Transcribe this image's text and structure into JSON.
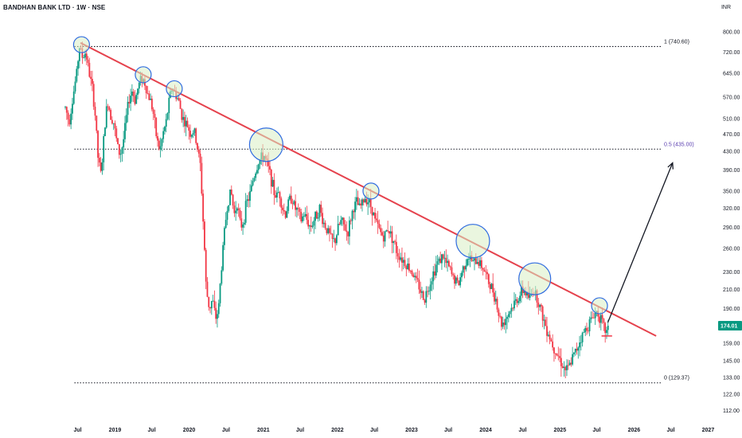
{
  "header": {
    "title": "BANDHAN BANK LTD · 1W · NSE",
    "currency": "INR"
  },
  "chart_data": {
    "type": "candlestick",
    "y_scale": "log",
    "ylim": [
      110,
      840
    ],
    "xlim": [
      "2018-05-01",
      "2027-01-15"
    ],
    "y_ticks": [
      "800.00",
      "720.00",
      "645.00",
      "570.00",
      "510.00",
      "470.00",
      "430.00",
      "390.00",
      "350.00",
      "320.00",
      "290.00",
      "260.00",
      "230.00",
      "210.00",
      "190.00",
      "159.00",
      "145.00",
      "133.00",
      "122.00",
      "112.00"
    ],
    "x_ticks": [
      {
        "label": "Jul",
        "date": "2018-07-01"
      },
      {
        "label": "2019",
        "date": "2019-01-01"
      },
      {
        "label": "Jul",
        "date": "2019-07-01"
      },
      {
        "label": "2020",
        "date": "2020-01-01"
      },
      {
        "label": "Jul",
        "date": "2020-07-01"
      },
      {
        "label": "2021",
        "date": "2021-01-01"
      },
      {
        "label": "Jul",
        "date": "2021-07-01"
      },
      {
        "label": "2022",
        "date": "2022-01-01"
      },
      {
        "label": "Jul",
        "date": "2022-07-01"
      },
      {
        "label": "2023",
        "date": "2023-01-01"
      },
      {
        "label": "Jul",
        "date": "2023-07-01"
      },
      {
        "label": "2024",
        "date": "2024-01-01"
      },
      {
        "label": "Jul",
        "date": "2024-07-01"
      },
      {
        "label": "2025",
        "date": "2025-01-01"
      },
      {
        "label": "Jul",
        "date": "2025-07-01"
      },
      {
        "label": "2026",
        "date": "2026-01-01"
      },
      {
        "label": "Jul",
        "date": "2026-07-01"
      },
      {
        "label": "2027",
        "date": "2027-01-01"
      }
    ],
    "last_price": {
      "label": "174.01",
      "value": 174.01,
      "color": "#089981"
    },
    "colors": {
      "up": "#089981",
      "down": "#f23645",
      "trendline": "#e5424d",
      "circle_fill": "#d9efc4",
      "circle_stroke": "#2f6be0",
      "fib_label": "#5b3fb0"
    },
    "fib_levels": [
      {
        "label": "1 (740.60)",
        "value": 740.6,
        "color": "#131722"
      },
      {
        "label": "0.5 (435.00)",
        "value": 435.0,
        "color": "#5b3fb0"
      },
      {
        "label": "0 (129.37)",
        "value": 129.37,
        "color": "#131722"
      }
    ],
    "trendline": {
      "start": {
        "date": "2018-07-15",
        "price": 755
      },
      "end": {
        "date": "2026-04-20",
        "price": 165
      }
    },
    "touch_circles": [
      {
        "date": "2018-07-20",
        "price": 748,
        "r_px": 10
      },
      {
        "date": "2019-05-20",
        "price": 640,
        "r_px": 10
      },
      {
        "date": "2019-10-20",
        "price": 595,
        "r_px": 10
      },
      {
        "date": "2021-01-15",
        "price": 445,
        "r_px": 21
      },
      {
        "date": "2022-06-15",
        "price": 350,
        "r_px": 10
      },
      {
        "date": "2023-10-30",
        "price": 270,
        "r_px": 21
      },
      {
        "date": "2024-08-30",
        "price": 222,
        "r_px": 20
      },
      {
        "date": "2025-07-15",
        "price": 193,
        "r_px": 10
      }
    ],
    "projection_arrow": {
      "from": {
        "date": "2025-08-25",
        "price": 177
      },
      "to": {
        "date": "2026-07-10",
        "price": 405
      }
    },
    "recent_support": {
      "from": {
        "date": "2025-07-25",
        "price": 165
      },
      "to": {
        "date": "2025-09-15",
        "price": 165
      }
    },
    "price_path": [
      [
        "2018-05-01",
        540
      ],
      [
        "2018-05-20",
        500
      ],
      [
        "2018-06-10",
        580
      ],
      [
        "2018-06-25",
        640
      ],
      [
        "2018-07-10",
        740
      ],
      [
        "2018-07-25",
        700
      ],
      [
        "2018-08-10",
        720
      ],
      [
        "2018-08-25",
        650
      ],
      [
        "2018-09-10",
        600
      ],
      [
        "2018-09-25",
        520
      ],
      [
        "2018-10-10",
        410
      ],
      [
        "2018-10-25",
        380
      ],
      [
        "2018-11-10",
        480
      ],
      [
        "2018-11-25",
        560
      ],
      [
        "2018-12-10",
        520
      ],
      [
        "2018-12-25",
        500
      ],
      [
        "2019-01-10",
        450
      ],
      [
        "2019-01-25",
        420
      ],
      [
        "2019-02-10",
        450
      ],
      [
        "2019-02-25",
        510
      ],
      [
        "2019-03-10",
        560
      ],
      [
        "2019-03-25",
        590
      ],
      [
        "2019-04-10",
        560
      ],
      [
        "2019-04-25",
        600
      ],
      [
        "2019-05-10",
        630
      ],
      [
        "2019-05-25",
        620
      ],
      [
        "2019-06-10",
        580
      ],
      [
        "2019-06-25",
        560
      ],
      [
        "2019-07-10",
        520
      ],
      [
        "2019-07-25",
        460
      ],
      [
        "2019-08-10",
        430
      ],
      [
        "2019-08-25",
        470
      ],
      [
        "2019-09-10",
        500
      ],
      [
        "2019-09-25",
        560
      ],
      [
        "2019-10-10",
        600
      ],
      [
        "2019-10-25",
        580
      ],
      [
        "2019-11-10",
        560
      ],
      [
        "2019-11-25",
        520
      ],
      [
        "2019-12-10",
        500
      ],
      [
        "2019-12-25",
        490
      ],
      [
        "2020-01-10",
        470
      ],
      [
        "2020-01-25",
        480
      ],
      [
        "2020-02-10",
        440
      ],
      [
        "2020-02-25",
        400
      ],
      [
        "2020-03-10",
        300
      ],
      [
        "2020-03-25",
        210
      ],
      [
        "2020-04-10",
        190
      ],
      [
        "2020-04-25",
        200
      ],
      [
        "2020-05-10",
        180
      ],
      [
        "2020-05-25",
        190
      ],
      [
        "2020-06-10",
        240
      ],
      [
        "2020-06-25",
        290
      ],
      [
        "2020-07-10",
        330
      ],
      [
        "2020-07-25",
        350
      ],
      [
        "2020-08-10",
        310
      ],
      [
        "2020-08-25",
        330
      ],
      [
        "2020-09-10",
        290
      ],
      [
        "2020-09-25",
        300
      ],
      [
        "2020-10-10",
        330
      ],
      [
        "2020-10-25",
        340
      ],
      [
        "2020-11-10",
        370
      ],
      [
        "2020-11-25",
        390
      ],
      [
        "2020-12-10",
        410
      ],
      [
        "2021-01-05",
        420
      ],
      [
        "2021-01-20",
        400
      ],
      [
        "2021-02-05",
        380
      ],
      [
        "2021-02-20",
        350
      ],
      [
        "2021-03-05",
        340
      ],
      [
        "2021-03-20",
        350
      ],
      [
        "2021-04-05",
        320
      ],
      [
        "2021-04-20",
        310
      ],
      [
        "2021-05-05",
        330
      ],
      [
        "2021-05-20",
        340
      ],
      [
        "2021-06-05",
        320
      ],
      [
        "2021-06-20",
        315
      ],
      [
        "2021-07-05",
        300
      ],
      [
        "2021-07-20",
        310
      ],
      [
        "2021-08-05",
        300
      ],
      [
        "2021-08-20",
        290
      ],
      [
        "2021-09-05",
        300
      ],
      [
        "2021-09-20",
        310
      ],
      [
        "2021-10-05",
        320
      ],
      [
        "2021-10-20",
        300
      ],
      [
        "2021-11-05",
        290
      ],
      [
        "2021-11-20",
        280
      ],
      [
        "2021-12-05",
        270
      ],
      [
        "2021-12-20",
        270
      ],
      [
        "2022-01-05",
        290
      ],
      [
        "2022-01-20",
        300
      ],
      [
        "2022-02-05",
        290
      ],
      [
        "2022-02-20",
        280
      ],
      [
        "2022-03-05",
        300
      ],
      [
        "2022-03-20",
        320
      ],
      [
        "2022-04-05",
        330
      ],
      [
        "2022-04-20",
        320
      ],
      [
        "2022-05-05",
        330
      ],
      [
        "2022-05-20",
        340
      ],
      [
        "2022-06-05",
        330
      ],
      [
        "2022-06-20",
        320
      ],
      [
        "2022-07-05",
        300
      ],
      [
        "2022-07-20",
        290
      ],
      [
        "2022-08-05",
        280
      ],
      [
        "2022-08-20",
        275
      ],
      [
        "2022-09-05",
        290
      ],
      [
        "2022-09-20",
        280
      ],
      [
        "2022-10-05",
        270
      ],
      [
        "2022-10-20",
        255
      ],
      [
        "2022-11-05",
        250
      ],
      [
        "2022-11-20",
        245
      ],
      [
        "2022-12-05",
        240
      ],
      [
        "2022-12-20",
        235
      ],
      [
        "2023-01-05",
        230
      ],
      [
        "2023-01-20",
        220
      ],
      [
        "2023-02-05",
        215
      ],
      [
        "2023-02-20",
        205
      ],
      [
        "2023-03-05",
        200
      ],
      [
        "2023-03-20",
        210
      ],
      [
        "2023-04-05",
        220
      ],
      [
        "2023-04-20",
        230
      ],
      [
        "2023-05-05",
        240
      ],
      [
        "2023-05-20",
        245
      ],
      [
        "2023-06-05",
        250
      ],
      [
        "2023-06-20",
        240
      ],
      [
        "2023-07-05",
        235
      ],
      [
        "2023-07-20",
        225
      ],
      [
        "2023-08-05",
        220
      ],
      [
        "2023-08-20",
        215
      ],
      [
        "2023-09-05",
        230
      ],
      [
        "2023-09-20",
        240
      ],
      [
        "2023-10-05",
        250
      ],
      [
        "2023-10-20",
        245
      ],
      [
        "2023-11-05",
        240
      ],
      [
        "2023-11-20",
        245
      ],
      [
        "2023-12-05",
        240
      ],
      [
        "2023-12-20",
        235
      ],
      [
        "2024-01-05",
        225
      ],
      [
        "2024-01-20",
        215
      ],
      [
        "2024-02-05",
        210
      ],
      [
        "2024-02-20",
        200
      ],
      [
        "2024-03-05",
        185
      ],
      [
        "2024-03-20",
        175
      ],
      [
        "2024-04-05",
        180
      ],
      [
        "2024-04-20",
        185
      ],
      [
        "2024-05-05",
        190
      ],
      [
        "2024-05-20",
        195
      ],
      [
        "2024-06-05",
        200
      ],
      [
        "2024-06-20",
        205
      ],
      [
        "2024-07-05",
        210
      ],
      [
        "2024-07-20",
        205
      ],
      [
        "2024-08-05",
        200
      ],
      [
        "2024-08-20",
        210
      ],
      [
        "2024-09-05",
        205
      ],
      [
        "2024-09-20",
        195
      ],
      [
        "2024-10-05",
        185
      ],
      [
        "2024-10-20",
        175
      ],
      [
        "2024-11-05",
        168
      ],
      [
        "2024-11-20",
        160
      ],
      [
        "2024-12-05",
        155
      ],
      [
        "2024-12-20",
        150
      ],
      [
        "2025-01-05",
        145
      ],
      [
        "2025-01-20",
        140
      ],
      [
        "2025-02-05",
        138
      ],
      [
        "2025-02-20",
        142
      ],
      [
        "2025-03-05",
        148
      ],
      [
        "2025-03-20",
        152
      ],
      [
        "2025-04-05",
        160
      ],
      [
        "2025-04-20",
        165
      ],
      [
        "2025-05-05",
        170
      ],
      [
        "2025-05-20",
        175
      ],
      [
        "2025-06-05",
        180
      ],
      [
        "2025-06-20",
        185
      ],
      [
        "2025-07-05",
        188
      ],
      [
        "2025-07-20",
        180
      ],
      [
        "2025-08-05",
        172
      ],
      [
        "2025-08-20",
        168
      ],
      [
        "2025-09-01",
        174
      ]
    ]
  }
}
